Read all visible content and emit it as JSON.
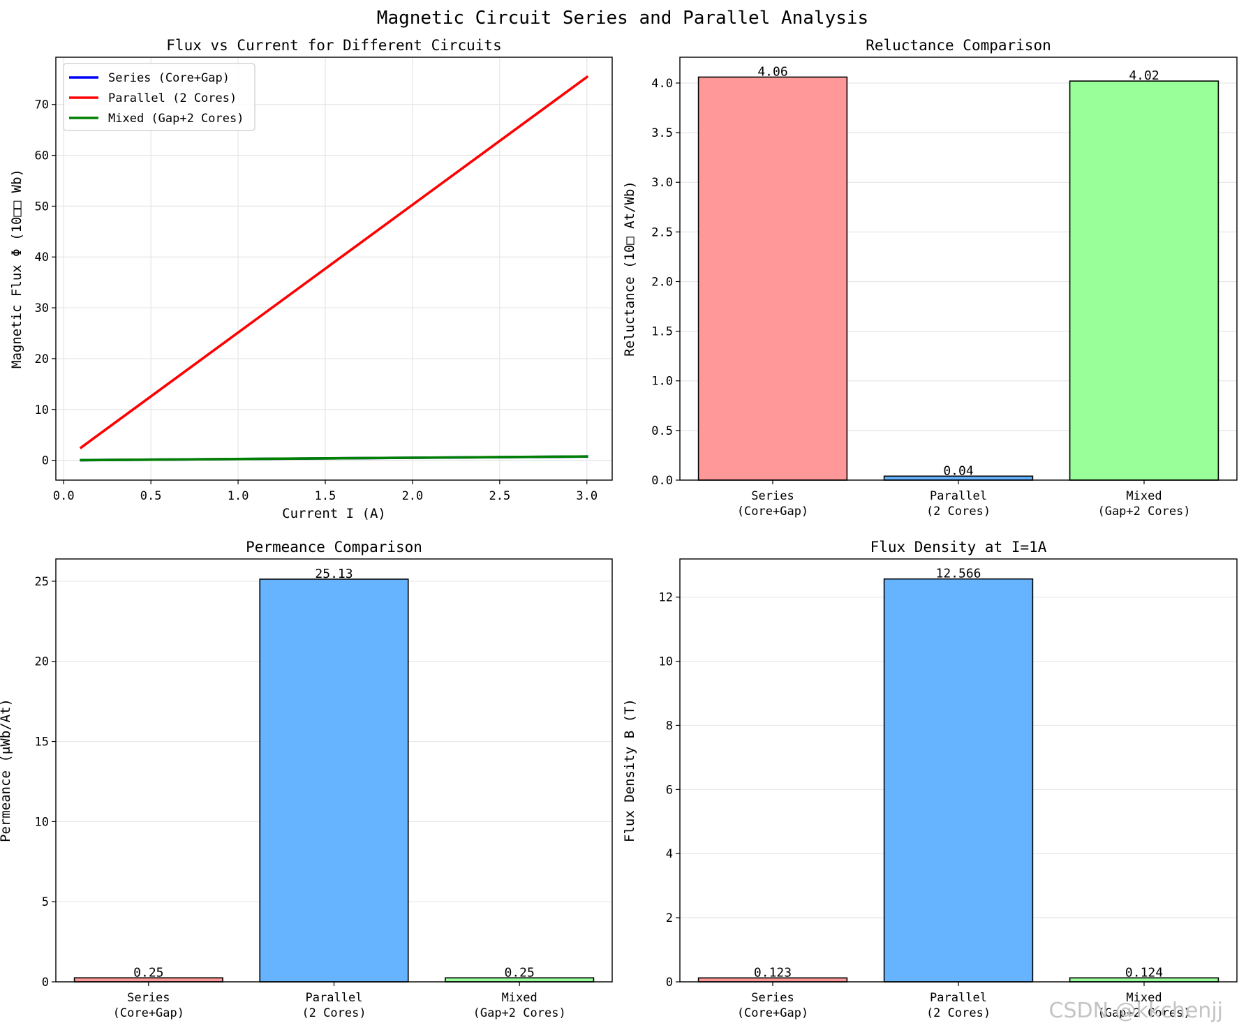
{
  "figure": {
    "title": "Magnetic Circuit Series and Parallel Analysis",
    "watermark": "CSDN @kkchenjj"
  },
  "colors": {
    "series_line": "#0000ff",
    "parallel_line": "#ff0000",
    "mixed_line": "#008000",
    "bar_series": "#ff9999",
    "bar_parallel": "#66b3ff",
    "bar_mixed": "#99ff99",
    "grid": "#e6e6e6"
  },
  "chart_data": [
    {
      "id": "flux",
      "type": "line",
      "title": "Flux vs Current for Different Circuits",
      "xlabel": "Current I (A)",
      "ylabel": "Magnetic Flux Φ (10□□ Wb)",
      "xlim": [
        -0.045,
        3.145
      ],
      "ylim": [
        -3.9,
        79.3
      ],
      "xticks": [
        0.0,
        0.5,
        1.0,
        1.5,
        2.0,
        2.5,
        3.0
      ],
      "xtick_labels": [
        "0.0",
        "0.5",
        "1.0",
        "1.5",
        "2.0",
        "2.5",
        "3.0"
      ],
      "yticks": [
        0,
        10,
        20,
        30,
        40,
        50,
        60,
        70
      ],
      "ytick_labels": [
        "0",
        "10",
        "20",
        "30",
        "40",
        "50",
        "60",
        "70"
      ],
      "grid": true,
      "legend": "top-left",
      "x": [
        0.1,
        3.0
      ],
      "series": [
        {
          "name": "Series (Core+Gap)",
          "color_key": "series_line",
          "values": [
            0.025,
            0.74
          ]
        },
        {
          "name": "Parallel (2 Cores)",
          "color_key": "parallel_line",
          "values": [
            2.51,
            75.4
          ]
        },
        {
          "name": "Mixed (Gap+2 Cores)",
          "color_key": "mixed_line",
          "values": [
            0.025,
            0.75
          ]
        }
      ]
    },
    {
      "id": "reluctance",
      "type": "bar",
      "title": "Reluctance Comparison",
      "xlabel": "",
      "ylabel": "Reluctance (10□ At/Wb)",
      "categories": [
        "Series\n(Core+Gap)",
        "Parallel\n(2 Cores)",
        "Mixed\n(Gap+2 Cores)"
      ],
      "values": [
        4.06,
        0.04,
        4.02
      ],
      "value_labels": [
        "4.06",
        "0.04",
        "4.02"
      ],
      "bar_color_keys": [
        "bar_series",
        "bar_parallel",
        "bar_mixed"
      ],
      "ylim": [
        0,
        4.26
      ],
      "yticks": [
        0.0,
        0.5,
        1.0,
        1.5,
        2.0,
        2.5,
        3.0,
        3.5,
        4.0
      ],
      "ytick_labels": [
        "0.0",
        "0.5",
        "1.0",
        "1.5",
        "2.0",
        "2.5",
        "3.0",
        "3.5",
        "4.0"
      ],
      "grid": true
    },
    {
      "id": "permeance",
      "type": "bar",
      "title": "Permeance Comparison",
      "xlabel": "",
      "ylabel": "Permeance (μWb/At)",
      "categories": [
        "Series\n(Core+Gap)",
        "Parallel\n(2 Cores)",
        "Mixed\n(Gap+2 Cores)"
      ],
      "values": [
        0.25,
        25.13,
        0.25
      ],
      "value_labels": [
        "0.25",
        "25.13",
        "0.25"
      ],
      "bar_color_keys": [
        "bar_series",
        "bar_parallel",
        "bar_mixed"
      ],
      "ylim": [
        0,
        26.39
      ],
      "yticks": [
        0,
        5,
        10,
        15,
        20,
        25
      ],
      "ytick_labels": [
        "0",
        "5",
        "10",
        "15",
        "20",
        "25"
      ],
      "grid": true
    },
    {
      "id": "fluxdensity",
      "type": "bar",
      "title": "Flux Density at I=1A",
      "xlabel": "",
      "ylabel": "Flux Density B (T)",
      "categories": [
        "Series\n(Core+Gap)",
        "Parallel\n(2 Cores)",
        "Mixed\n(Gap+2 Cores)"
      ],
      "values": [
        0.123,
        12.566,
        0.124
      ],
      "value_labels": [
        "0.123",
        "12.566",
        "0.124"
      ],
      "bar_color_keys": [
        "bar_series",
        "bar_parallel",
        "bar_mixed"
      ],
      "ylim": [
        0,
        13.19
      ],
      "yticks": [
        0,
        2,
        4,
        6,
        8,
        10,
        12
      ],
      "ytick_labels": [
        "0",
        "2",
        "4",
        "6",
        "8",
        "10",
        "12"
      ],
      "grid": true
    }
  ]
}
